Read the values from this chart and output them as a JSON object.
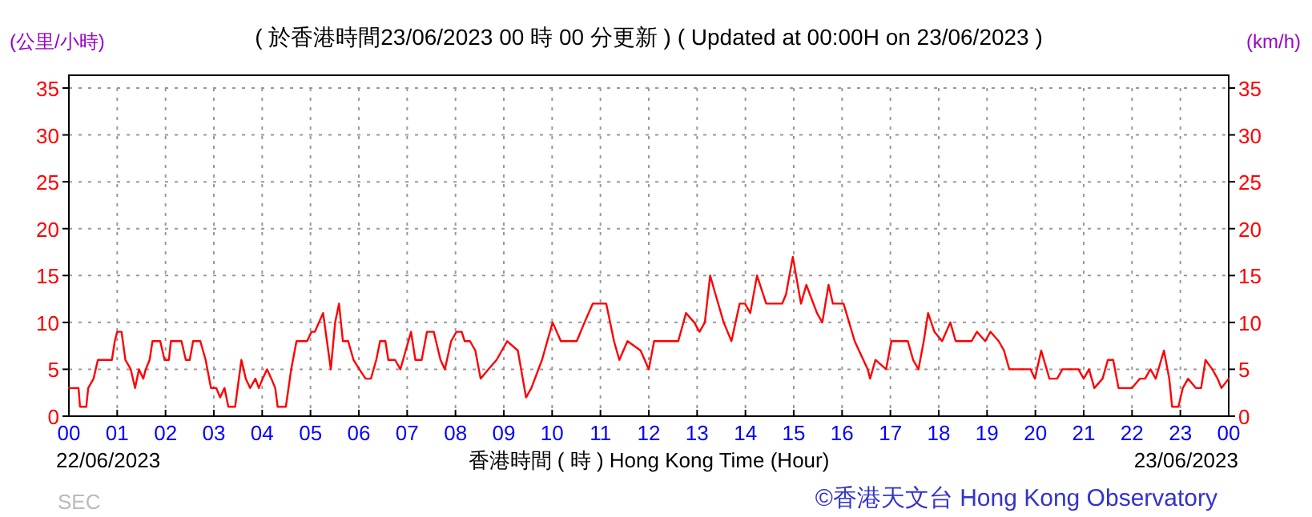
{
  "chart_data": {
    "type": "line",
    "title": "( 於香港時間23/06/2023 00 時 00 分更新 ) ( Updated at 00:00H on 23/06/2023 )",
    "ylabel": "(公里/小時)",
    "y2label": "(km/h)",
    "xlabel": "香港時間 ( 時 ) Hong Kong Time (Hour)",
    "xlim": [
      0,
      24
    ],
    "xticks": [
      {
        "value": 0,
        "label": "00"
      },
      {
        "value": 1,
        "label": "01"
      },
      {
        "value": 2,
        "label": "02"
      },
      {
        "value": 3,
        "label": "03"
      },
      {
        "value": 4,
        "label": "04"
      },
      {
        "value": 5,
        "label": "05"
      },
      {
        "value": 6,
        "label": "06"
      },
      {
        "value": 7,
        "label": "07"
      },
      {
        "value": 8,
        "label": "08"
      },
      {
        "value": 9,
        "label": "09"
      },
      {
        "value": 10,
        "label": "10"
      },
      {
        "value": 11,
        "label": "11"
      },
      {
        "value": 12,
        "label": "12"
      },
      {
        "value": 13,
        "label": "13"
      },
      {
        "value": 14,
        "label": "14"
      },
      {
        "value": 15,
        "label": "15"
      },
      {
        "value": 16,
        "label": "16"
      },
      {
        "value": 17,
        "label": "17"
      },
      {
        "value": 18,
        "label": "18"
      },
      {
        "value": 19,
        "label": "19"
      },
      {
        "value": 20,
        "label": "20"
      },
      {
        "value": 21,
        "label": "21"
      },
      {
        "value": 22,
        "label": "22"
      },
      {
        "value": 23,
        "label": "23"
      },
      {
        "value": 24,
        "label": "00"
      }
    ],
    "ylim": [
      0,
      35
    ],
    "yticks": [
      0,
      5,
      10,
      15,
      20,
      25,
      30,
      35
    ],
    "y2lim": [
      0,
      35
    ],
    "y2ticks": [
      0,
      5,
      10,
      15,
      20,
      25,
      30,
      35
    ],
    "grid": true,
    "series": [
      {
        "color": "#ff0000",
        "x": [
          0,
          0.2,
          0.23,
          0.36,
          0.4,
          0.51,
          0.6,
          0.89,
          0.95,
          1.0,
          1.09,
          1.17,
          1.28,
          1.37,
          1.45,
          1.54,
          1.59,
          1.67,
          1.73,
          1.89,
          1.98,
          2.07,
          2.11,
          2.33,
          2.42,
          2.5,
          2.57,
          2.72,
          2.83,
          2.94,
          3.05,
          3.13,
          3.22,
          3.3,
          3.44,
          3.57,
          3.66,
          3.75,
          3.86,
          3.93,
          4.01,
          4.1,
          4.19,
          4.27,
          4.32,
          4.49,
          4.6,
          4.71,
          4.93,
          5.02,
          5.09,
          5.26,
          5.34,
          5.42,
          5.51,
          5.59,
          5.67,
          5.78,
          5.89,
          6.01,
          6.14,
          6.25,
          6.36,
          6.44,
          6.55,
          6.61,
          6.75,
          6.86,
          6.97,
          7.08,
          7.17,
          7.3,
          7.41,
          7.55,
          7.69,
          7.78,
          7.91,
          8.02,
          8.13,
          8.19,
          8.3,
          8.41,
          8.52,
          8.68,
          8.85,
          9.07,
          9.29,
          9.46,
          9.57,
          9.79,
          10.01,
          10.18,
          10.51,
          10.67,
          10.84,
          11.12,
          11.28,
          11.39,
          11.56,
          11.83,
          12.0,
          12.11,
          12.39,
          12.61,
          12.77,
          12.94,
          13.05,
          13.16,
          13.27,
          13.38,
          13.55,
          13.71,
          13.88,
          13.99,
          14.1,
          14.24,
          14.43,
          14.76,
          14.84,
          14.98,
          15.15,
          15.26,
          15.48,
          15.59,
          15.72,
          15.81,
          16.03,
          16.26,
          16.53,
          16.58,
          16.69,
          16.91,
          17.02,
          17.36,
          17.47,
          17.58,
          17.69,
          17.78,
          17.91,
          18.07,
          18.24,
          18.35,
          18.68,
          18.79,
          18.96,
          19.07,
          19.24,
          19.35,
          19.46,
          19.9,
          19.99,
          20.12,
          20.29,
          20.45,
          20.56,
          20.89,
          21.0,
          21.11,
          21.22,
          21.39,
          21.5,
          21.61,
          21.72,
          22.0,
          22.16,
          22.27,
          22.38,
          22.49,
          22.66,
          22.77,
          22.83,
          22.96,
          23.05,
          23.16,
          23.32,
          23.43,
          23.52,
          23.66,
          23.77,
          23.85,
          24
        ],
        "values": [
          3,
          3,
          1,
          1,
          3,
          4,
          6,
          6,
          8,
          9,
          9,
          6,
          5,
          3,
          5,
          4,
          5,
          6,
          8,
          8,
          6,
          6,
          8,
          8,
          6,
          6,
          8,
          8,
          6,
          3,
          3,
          2,
          3,
          1,
          1,
          6,
          4,
          3,
          4,
          3,
          4,
          5,
          4,
          3,
          1,
          1,
          5,
          8,
          8,
          9,
          9,
          11,
          8,
          5,
          10,
          12,
          8,
          8,
          6,
          5,
          4,
          4,
          6,
          8,
          8,
          6,
          6,
          5,
          7,
          9,
          6,
          6,
          9,
          9,
          6,
          5,
          8,
          9,
          9,
          8,
          8,
          7,
          4,
          5,
          6,
          8,
          7,
          2,
          3,
          6,
          10,
          8,
          8,
          10,
          12,
          12,
          8,
          6,
          8,
          7,
          5,
          8,
          8,
          8,
          11,
          10,
          9,
          10,
          15,
          13,
          10,
          8,
          12,
          12,
          11,
          15,
          12,
          12,
          13,
          17,
          12,
          14,
          11,
          10,
          14,
          12,
          12,
          8,
          5,
          4,
          6,
          5,
          8,
          8,
          6,
          5,
          8,
          11,
          9,
          8,
          10,
          8,
          8,
          9,
          8,
          9,
          8,
          7,
          5,
          5,
          4,
          7,
          4,
          4,
          5,
          5,
          4,
          5,
          3,
          4,
          6,
          6,
          3,
          3,
          4,
          4,
          5,
          4,
          7,
          4,
          1,
          1,
          3,
          4,
          3,
          3,
          6,
          5,
          4,
          3,
          4
        ]
      }
    ],
    "annotations": [
      "22/06/2023",
      "23/06/2023",
      "SEC",
      "©香港天文台 Hong Kong Observatory"
    ]
  }
}
